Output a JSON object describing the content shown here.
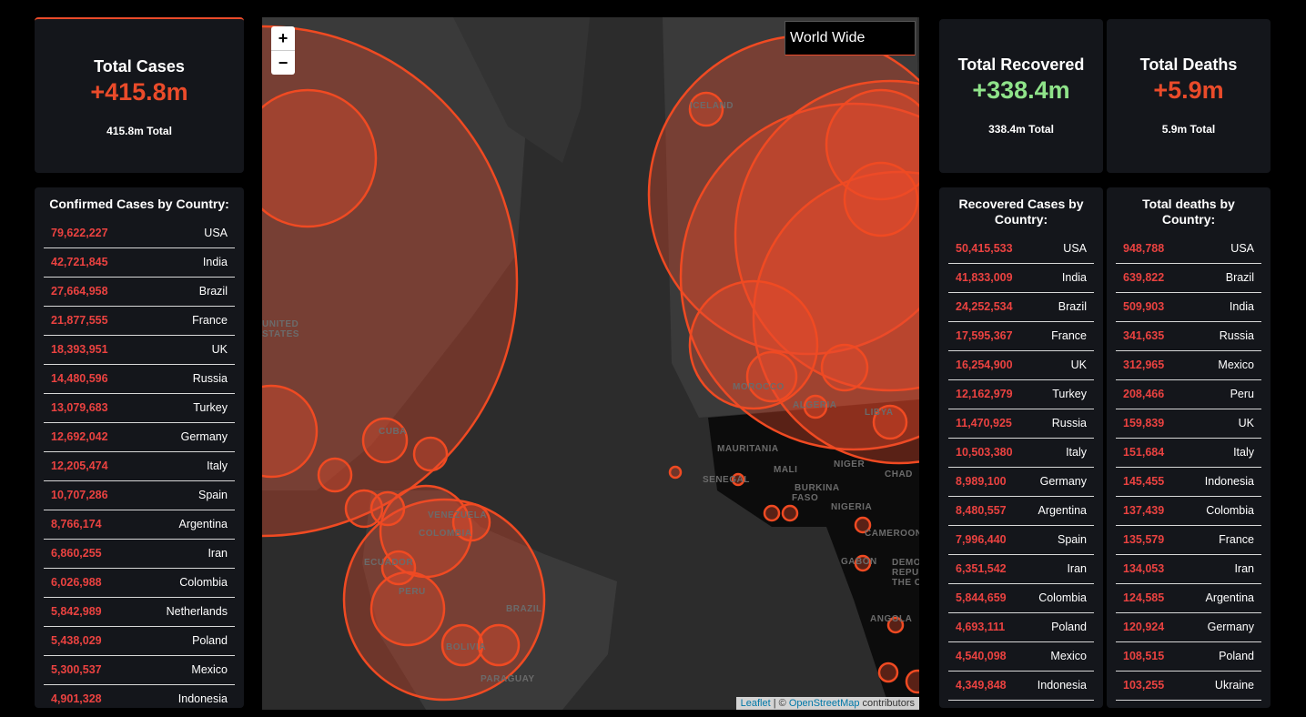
{
  "stats": {
    "cases": {
      "title": "Total Cases",
      "value": "+415.8m",
      "total": "415.8m Total"
    },
    "recovered": {
      "title": "Total Recovered",
      "value": "+338.4m",
      "total": "338.4m Total"
    },
    "deaths": {
      "title": "Total Deaths",
      "value": "+5.9m",
      "total": "5.9m Total"
    }
  },
  "map": {
    "zoom_in": "+",
    "zoom_out": "−",
    "selector": "World Wide",
    "attribution": {
      "link": "Leaflet",
      "separator": " | © ",
      "source": "OpenStreetMap",
      "suffix": " contributors"
    },
    "labels": [
      "ICELAND",
      "UNITED",
      "STATES",
      "CUBA",
      "VENEZUELA",
      "COLOMBIA",
      "ECUADOR",
      "PERU",
      "BRAZIL",
      "BOLIVIA",
      "PARAGUAY",
      "MAURITANIA",
      "MALI",
      "NIGER",
      "CHAD",
      "SENEGAL",
      "BURKINA",
      "FASO",
      "NIGERIA",
      "CAMEROON",
      "GABON",
      "DEMO",
      "REPUB",
      "THE CO",
      "ANGOLA",
      "ALGERIA",
      "LIBYA",
      "MOROCCO"
    ]
  },
  "lists": {
    "confirmed": {
      "title": "Confirmed Cases by Country:",
      "rows": [
        {
          "value": "79,622,227",
          "country": "USA"
        },
        {
          "value": "42,721,845",
          "country": "India"
        },
        {
          "value": "27,664,958",
          "country": "Brazil"
        },
        {
          "value": "21,877,555",
          "country": "France"
        },
        {
          "value": "18,393,951",
          "country": "UK"
        },
        {
          "value": "14,480,596",
          "country": "Russia"
        },
        {
          "value": "13,079,683",
          "country": "Turkey"
        },
        {
          "value": "12,692,042",
          "country": "Germany"
        },
        {
          "value": "12,205,474",
          "country": "Italy"
        },
        {
          "value": "10,707,286",
          "country": "Spain"
        },
        {
          "value": "8,766,174",
          "country": "Argentina"
        },
        {
          "value": "6,860,255",
          "country": "Iran"
        },
        {
          "value": "6,026,988",
          "country": "Colombia"
        },
        {
          "value": "5,842,989",
          "country": "Netherlands"
        },
        {
          "value": "5,438,029",
          "country": "Poland"
        },
        {
          "value": "5,300,537",
          "country": "Mexico"
        },
        {
          "value": "4,901,328",
          "country": "Indonesia"
        }
      ]
    },
    "recovered": {
      "title": "Recovered Cases by Country:",
      "rows": [
        {
          "value": "50,415,533",
          "country": "USA"
        },
        {
          "value": "41,833,009",
          "country": "India"
        },
        {
          "value": "24,252,534",
          "country": "Brazil"
        },
        {
          "value": "17,595,367",
          "country": "France"
        },
        {
          "value": "16,254,900",
          "country": "UK"
        },
        {
          "value": "12,162,979",
          "country": "Turkey"
        },
        {
          "value": "11,470,925",
          "country": "Russia"
        },
        {
          "value": "10,503,380",
          "country": "Italy"
        },
        {
          "value": "8,989,100",
          "country": "Germany"
        },
        {
          "value": "8,480,557",
          "country": "Argentina"
        },
        {
          "value": "7,996,440",
          "country": "Spain"
        },
        {
          "value": "6,351,542",
          "country": "Iran"
        },
        {
          "value": "5,844,659",
          "country": "Colombia"
        },
        {
          "value": "4,693,111",
          "country": "Poland"
        },
        {
          "value": "4,540,098",
          "country": "Mexico"
        },
        {
          "value": "4,349,848",
          "country": "Indonesia"
        }
      ]
    },
    "deaths": {
      "title": "Total deaths by Country:",
      "rows": [
        {
          "value": "948,788",
          "country": "USA"
        },
        {
          "value": "639,822",
          "country": "Brazil"
        },
        {
          "value": "509,903",
          "country": "India"
        },
        {
          "value": "341,635",
          "country": "Russia"
        },
        {
          "value": "312,965",
          "country": "Mexico"
        },
        {
          "value": "208,466",
          "country": "Peru"
        },
        {
          "value": "159,839",
          "country": "UK"
        },
        {
          "value": "151,684",
          "country": "Italy"
        },
        {
          "value": "145,455",
          "country": "Indonesia"
        },
        {
          "value": "137,439",
          "country": "Colombia"
        },
        {
          "value": "135,579",
          "country": "France"
        },
        {
          "value": "134,053",
          "country": "Iran"
        },
        {
          "value": "124,585",
          "country": "Argentina"
        },
        {
          "value": "120,924",
          "country": "Germany"
        },
        {
          "value": "108,515",
          "country": "Poland"
        },
        {
          "value": "103,255",
          "country": "Ukraine"
        }
      ]
    }
  }
}
